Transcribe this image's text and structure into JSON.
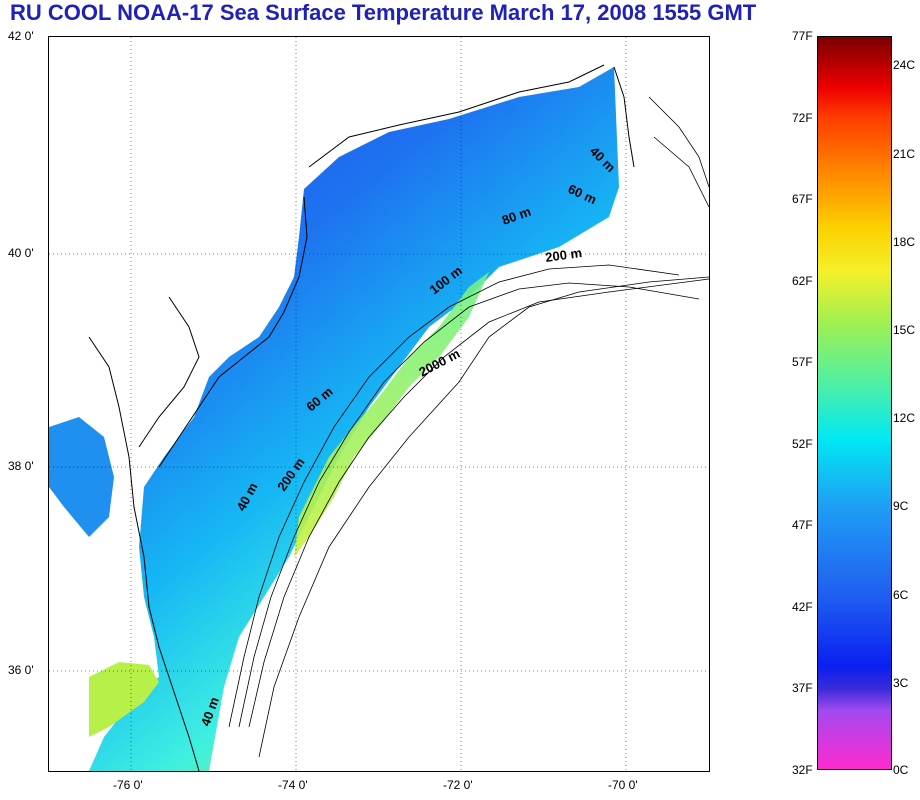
{
  "title": "RU COOL  NOAA-17 Sea Surface Temperature March 17, 2008 1555 GMT",
  "map": {
    "lat_labels": [
      "42 0'",
      "40 0'",
      "38 0'",
      "36 0'"
    ],
    "lon_labels": [
      "-76 0'",
      "-74 0'",
      "-72 0'",
      "-70 0'"
    ],
    "depth_labels": [
      "40 m",
      "40 m",
      "60 m",
      "200 m",
      "100 m",
      "2000 m",
      "200 m",
      "80 m",
      "60 m",
      "40 m"
    ]
  },
  "colorbar": {
    "fahrenheit": [
      "77F",
      "72F",
      "67F",
      "62F",
      "57F",
      "52F",
      "47F",
      "42F",
      "37F",
      "32F"
    ],
    "celsius": [
      "24C",
      "21C",
      "18C",
      "15C",
      "12C",
      "9C",
      "6C",
      "3C",
      "0C"
    ]
  }
}
